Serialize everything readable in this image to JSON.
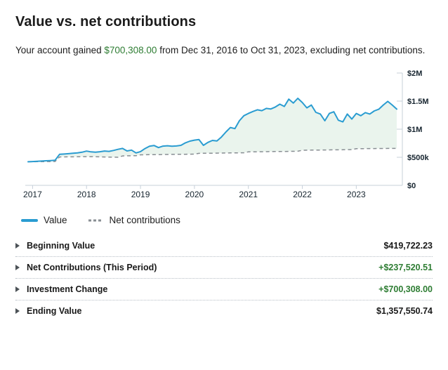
{
  "page": {
    "title": "Value vs. net contributions",
    "subtitle_prefix": "Your account gained ",
    "subtitle_amount": "$700,308.00",
    "subtitle_suffix": " from Dec 31, 2016 to Oct 31, 2023, excluding net contributions."
  },
  "colors": {
    "value_line_blue": "#2a9cd1",
    "net_line_gray": "#888e93",
    "gain_fill_green": "#eaf4ed",
    "axis_gray": "#c7d0da",
    "positive_green": "#2e7d33",
    "text_dark": "#16242f"
  },
  "legend": {
    "items": [
      {
        "id": "value",
        "label": "Value",
        "style": "solid",
        "color": "#2a9cd1"
      },
      {
        "id": "net-contributions",
        "label": "Net contributions",
        "style": "dashed",
        "color": "#888e93"
      }
    ]
  },
  "summary_table": {
    "rows": [
      {
        "label": "Beginning Value",
        "value": "$419,722.23",
        "positive": false
      },
      {
        "label": "Net Contributions (This Period)",
        "value": "+$237,520.51",
        "positive": true
      },
      {
        "label": "Investment Change",
        "value": "+$700,308.00",
        "positive": true
      },
      {
        "label": "Ending Value",
        "value": "$1,357,550.74",
        "positive": false
      }
    ]
  },
  "chart_data": {
    "type": "area",
    "title": "Value vs. net contributions",
    "x_start": "Dec 2016",
    "x_end": "Oct 2023",
    "interval": "monthly",
    "ylim": [
      0,
      2000000
    ],
    "unit": "USD (values in thousands)",
    "grid": false,
    "legend_position": "below",
    "fill_between": "between value line and net contributions line",
    "fill_color": "#eaf4ed",
    "y_ticks": [
      {
        "v": 0,
        "label": "$0"
      },
      {
        "v": 500,
        "label": "$500k"
      },
      {
        "v": 1000,
        "label": "$1M"
      },
      {
        "v": 1500,
        "label": "$1.5M"
      },
      {
        "v": 2000,
        "label": "$2M"
      }
    ],
    "x_ticks": [
      {
        "i": 1,
        "label": "2017"
      },
      {
        "i": 13,
        "label": "2018"
      },
      {
        "i": 25,
        "label": "2019"
      },
      {
        "i": 37,
        "label": "2020"
      },
      {
        "i": 49,
        "label": "2021"
      },
      {
        "i": 61,
        "label": "2022"
      },
      {
        "i": 73,
        "label": "2023"
      }
    ],
    "series": [
      {
        "name": "Value",
        "style": "solid",
        "color": "#2a9cd1",
        "start_value": 419722.23,
        "end_value": 1357550.74,
        "values_k": [
          420,
          424,
          428,
          433,
          437,
          441,
          446,
          553,
          558,
          564,
          571,
          579,
          590,
          610,
          596,
          590,
          599,
          611,
          605,
          621,
          641,
          657,
          612,
          628,
          577,
          601,
          655,
          698,
          710,
          672,
          699,
          705,
          697,
          701,
          712,
          758,
          788,
          805,
          815,
          712,
          765,
          800,
          790,
          860,
          950,
          1030,
          1010,
          1150,
          1240,
          1280,
          1315,
          1345,
          1330,
          1370,
          1360,
          1395,
          1445,
          1405,
          1535,
          1465,
          1550,
          1475,
          1380,
          1430,
          1300,
          1270,
          1150,
          1280,
          1310,
          1160,
          1130,
          1270,
          1180,
          1280,
          1240,
          1295,
          1270,
          1325,
          1355,
          1430,
          1495,
          1430,
          1357.55
        ]
      },
      {
        "name": "Net contributions",
        "style": "dashed",
        "color": "#888e93",
        "start_value": 419722.23,
        "end_value": 657242.74,
        "values_k": [
          419.7,
          420,
          421,
          422,
          423,
          424,
          425,
          505,
          506,
          507,
          508,
          509,
          510,
          511,
          511,
          509,
          507,
          505,
          503,
          501,
          500,
          524,
          526,
          527,
          528,
          544,
          545,
          546,
          547,
          548,
          549,
          550,
          551,
          552,
          553,
          554,
          555,
          556,
          570,
          571,
          572,
          573,
          574,
          575,
          576,
          577,
          578,
          579,
          580,
          596,
          597,
          598,
          599,
          600,
          601,
          602,
          603,
          604,
          605,
          606,
          607,
          625,
          626,
          627,
          628,
          629,
          630,
          631,
          632,
          633,
          634,
          635,
          636,
          652,
          653,
          654,
          655,
          655.5,
          656,
          656.5,
          657,
          657.2,
          657.24
        ]
      }
    ]
  }
}
